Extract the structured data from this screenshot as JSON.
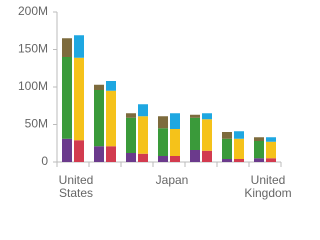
{
  "chart_data": {
    "type": "stacked-bar-pairs",
    "categories": [
      "United States",
      null,
      null,
      "Japan",
      null,
      null,
      "United Kingdom"
    ],
    "stacks": [
      {
        "series": [
          {
            "color": "#6b3a8c",
            "values": [
              31,
              21,
              12,
              8,
              16,
              4,
              5
            ]
          },
          {
            "color": "#3a9a3a",
            "values": [
              109,
              75,
              47,
              37,
              43,
              27,
              23
            ]
          },
          {
            "color": "#7d6b3d",
            "values": [
              25,
              7,
              6,
              16,
              4,
              9,
              5
            ]
          }
        ]
      },
      {
        "series": [
          {
            "color": "#d23b4f",
            "values": [
              29,
              21,
              11,
              8,
              15,
              4,
              5
            ]
          },
          {
            "color": "#f5c21a",
            "values": [
              110,
              74,
              50,
              36,
              42,
              27,
              22
            ]
          },
          {
            "color": "#1ea7e1",
            "values": [
              30,
              13,
              16,
              21,
              8,
              10,
              6
            ]
          }
        ]
      }
    ],
    "ylim": [
      0,
      200
    ],
    "yticks": [
      0,
      {
        "value": 50,
        "label": "50M"
      },
      {
        "value": 100,
        "label": "100M"
      },
      {
        "value": 150,
        "label": "150M"
      },
      {
        "value": 200,
        "label": "200M"
      }
    ]
  }
}
